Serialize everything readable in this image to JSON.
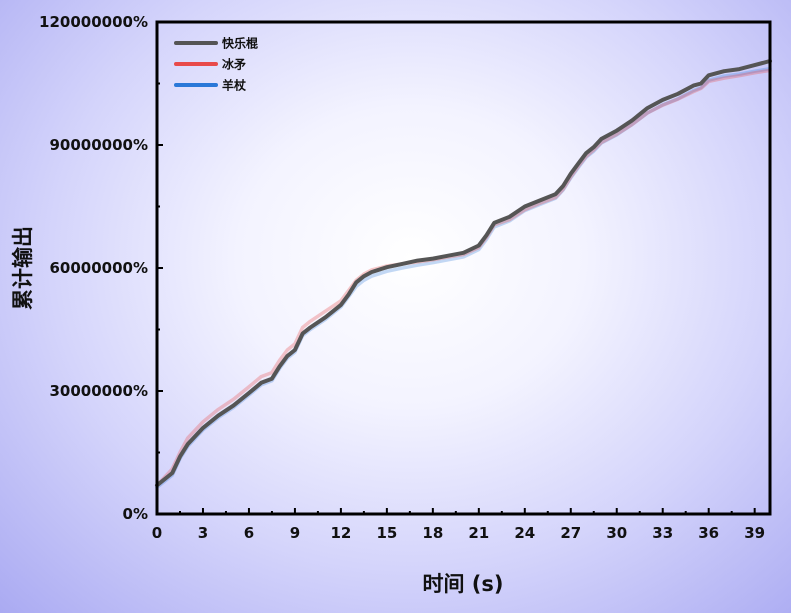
{
  "chart_data": {
    "type": "line",
    "xlabel": "时间 (s)",
    "ylabel": "累计输出",
    "xlim": [
      0,
      40
    ],
    "ylim": [
      0,
      120000000
    ],
    "xticks": [
      "0",
      "3",
      "6",
      "9",
      "12",
      "15",
      "18",
      "21",
      "24",
      "27",
      "30",
      "33",
      "36",
      "39"
    ],
    "yticks": [
      "0%",
      "30000000%",
      "60000000%",
      "90000000%",
      "120000000%"
    ],
    "legend_position": "top-left",
    "grid": false,
    "series": [
      {
        "name": "快乐棍",
        "color": "#555555",
        "points": [
          [
            0,
            7000000
          ],
          [
            1,
            10000000
          ],
          [
            1.5,
            14000000
          ],
          [
            2,
            17000000
          ],
          [
            3,
            21000000
          ],
          [
            4,
            24000000
          ],
          [
            5,
            26500000
          ],
          [
            6,
            29500000
          ],
          [
            6.8,
            32000000
          ],
          [
            7.5,
            33000000
          ],
          [
            8,
            36000000
          ],
          [
            8.5,
            38500000
          ],
          [
            9,
            40000000
          ],
          [
            9.5,
            44000000
          ],
          [
            10,
            45500000
          ],
          [
            11,
            48000000
          ],
          [
            12,
            51000000
          ],
          [
            12.5,
            53500000
          ],
          [
            13,
            56500000
          ],
          [
            13.5,
            58000000
          ],
          [
            14,
            59000000
          ],
          [
            15,
            60200000
          ],
          [
            16,
            61000000
          ],
          [
            17,
            61800000
          ],
          [
            18,
            62300000
          ],
          [
            19,
            63000000
          ],
          [
            20,
            63700000
          ],
          [
            21,
            65500000
          ],
          [
            21.5,
            68000000
          ],
          [
            22,
            71000000
          ],
          [
            23,
            72500000
          ],
          [
            24,
            75000000
          ],
          [
            25,
            76500000
          ],
          [
            26,
            78000000
          ],
          [
            26.5,
            80000000
          ],
          [
            27,
            83000000
          ],
          [
            27.5,
            85500000
          ],
          [
            28,
            88000000
          ],
          [
            28.5,
            89500000
          ],
          [
            29,
            91500000
          ],
          [
            30,
            93500000
          ],
          [
            31,
            96000000
          ],
          [
            32,
            99000000
          ],
          [
            33,
            101000000
          ],
          [
            34,
            102500000
          ],
          [
            35,
            104500000
          ],
          [
            35.5,
            105000000
          ],
          [
            36,
            107000000
          ],
          [
            37,
            108000000
          ],
          [
            38,
            108500000
          ],
          [
            39,
            109500000
          ],
          [
            40,
            110500000
          ]
        ]
      },
      {
        "name": "冰矛",
        "color": "#e84a4a",
        "points": [
          [
            0,
            7000000
          ],
          [
            1,
            11000000
          ],
          [
            1.5,
            15000000
          ],
          [
            2,
            18500000
          ],
          [
            3,
            22500000
          ],
          [
            4,
            25500000
          ],
          [
            5,
            28000000
          ],
          [
            6,
            31000000
          ],
          [
            6.8,
            33500000
          ],
          [
            7.5,
            34500000
          ],
          [
            8,
            37500000
          ],
          [
            8.5,
            40000000
          ],
          [
            9,
            41500000
          ],
          [
            9.5,
            45500000
          ],
          [
            10,
            47000000
          ],
          [
            11,
            49500000
          ],
          [
            12,
            52000000
          ],
          [
            12.5,
            54500000
          ],
          [
            13,
            57000000
          ],
          [
            13.5,
            58500000
          ],
          [
            14,
            59500000
          ],
          [
            15,
            60500000
          ],
          [
            16,
            61000000
          ],
          [
            17,
            61500000
          ],
          [
            18,
            62000000
          ],
          [
            19,
            62700000
          ],
          [
            20,
            63300000
          ],
          [
            21,
            65000000
          ],
          [
            21.5,
            67500000
          ],
          [
            22,
            70500000
          ],
          [
            23,
            71800000
          ],
          [
            24,
            74200000
          ],
          [
            25,
            75800000
          ],
          [
            26,
            77200000
          ],
          [
            26.5,
            79200000
          ],
          [
            27,
            82200000
          ],
          [
            27.5,
            84800000
          ],
          [
            28,
            87200000
          ],
          [
            28.5,
            88800000
          ],
          [
            29,
            90600000
          ],
          [
            30,
            92600000
          ],
          [
            31,
            95000000
          ],
          [
            32,
            97800000
          ],
          [
            33,
            99700000
          ],
          [
            34,
            101200000
          ],
          [
            35,
            103000000
          ],
          [
            35.5,
            103800000
          ],
          [
            36,
            105500000
          ],
          [
            37,
            106300000
          ],
          [
            38,
            106900000
          ],
          [
            39,
            107600000
          ],
          [
            40,
            108200000
          ]
        ]
      },
      {
        "name": "羊杖",
        "color": "#2a78d8",
        "points": [
          [
            0,
            6500000
          ],
          [
            1,
            9500000
          ],
          [
            1.5,
            13500000
          ],
          [
            2,
            16500000
          ],
          [
            3,
            20500000
          ],
          [
            4,
            23500000
          ],
          [
            5,
            26000000
          ],
          [
            6,
            29000000
          ],
          [
            6.8,
            31500000
          ],
          [
            7.5,
            32500000
          ],
          [
            8,
            35500000
          ],
          [
            8.5,
            38000000
          ],
          [
            9,
            39500000
          ],
          [
            9.5,
            43500000
          ],
          [
            10,
            45000000
          ],
          [
            11,
            47500000
          ],
          [
            12,
            50500000
          ],
          [
            12.5,
            53000000
          ],
          [
            13,
            55500000
          ],
          [
            13.5,
            57000000
          ],
          [
            14,
            58000000
          ],
          [
            15,
            59200000
          ],
          [
            16,
            60000000
          ],
          [
            17,
            60700000
          ],
          [
            18,
            61300000
          ],
          [
            19,
            62000000
          ],
          [
            20,
            62700000
          ],
          [
            21,
            64500000
          ],
          [
            21.5,
            67000000
          ],
          [
            22,
            70000000
          ],
          [
            23,
            71500000
          ],
          [
            24,
            74000000
          ],
          [
            25,
            75500000
          ],
          [
            26,
            77000000
          ],
          [
            26.5,
            79000000
          ],
          [
            27,
            82000000
          ],
          [
            27.5,
            84500000
          ],
          [
            28,
            87000000
          ],
          [
            28.5,
            88500000
          ],
          [
            29,
            90500000
          ],
          [
            30,
            92500000
          ],
          [
            31,
            95000000
          ],
          [
            32,
            97800000
          ],
          [
            33,
            99800000
          ],
          [
            34,
            101300000
          ],
          [
            35,
            103300000
          ],
          [
            35.5,
            104000000
          ],
          [
            36,
            105800000
          ],
          [
            37,
            106800000
          ],
          [
            38,
            107300000
          ],
          [
            39,
            108000000
          ],
          [
            40,
            108600000
          ]
        ]
      }
    ]
  }
}
